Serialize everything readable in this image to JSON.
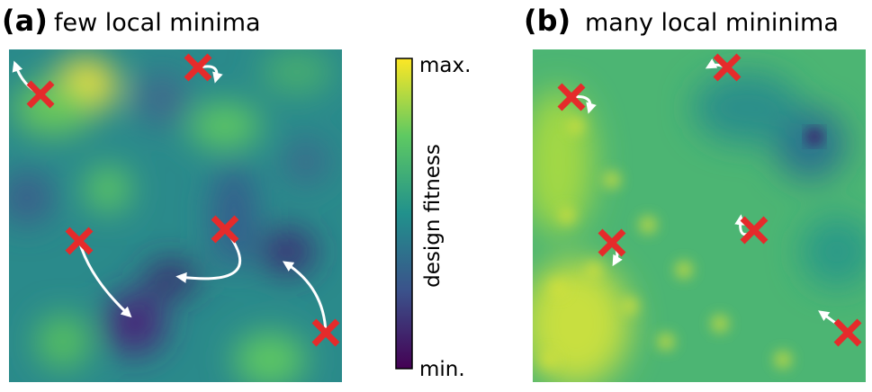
{
  "panels": [
    {
      "label": "(a)",
      "title": "few local minima"
    },
    {
      "label": "(b)",
      "title": "many local mininima"
    }
  ],
  "colorbar": {
    "label": "design fitness",
    "max": "max.",
    "min": "min."
  }
}
